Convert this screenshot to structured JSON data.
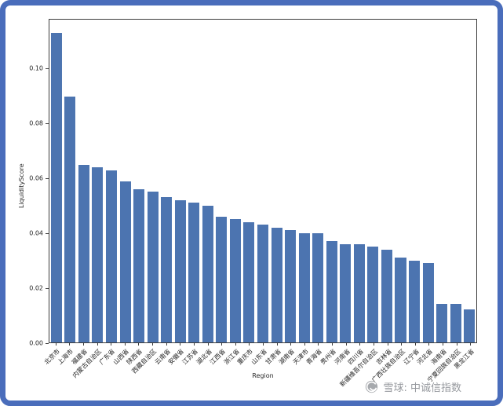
{
  "frame": {
    "border_color": "#4a6dbb",
    "background": "#ffffff"
  },
  "watermark": {
    "text": "雪球: 中诚信指数",
    "color": "#96999e"
  },
  "chart_data": {
    "type": "bar",
    "title": "",
    "xlabel": "Region",
    "ylabel": "LiquidityScore",
    "bar_color": "#4c74b0",
    "grid": false,
    "legend": null,
    "ylim": [
      0,
      0.118
    ],
    "yticks": [
      "0.00",
      "0.02",
      "0.04",
      "0.06",
      "0.08",
      "0.10"
    ],
    "categories": [
      "北京市",
      "上海市",
      "福建省",
      "内蒙古自治区",
      "广东省",
      "山西省",
      "陕西省",
      "西藏自治区",
      "云南省",
      "安徽省",
      "江苏省",
      "湖北省",
      "江西省",
      "浙江省",
      "重庆市",
      "山东省",
      "甘肃省",
      "湖南省",
      "天津市",
      "青海省",
      "贵州省",
      "河南省",
      "四川省",
      "新疆维吾尔自治区",
      "吉林省",
      "广西壮族自治区",
      "辽宁省",
      "河北省",
      "海南省",
      "宁夏回族自治区",
      "黑龙江省"
    ],
    "values": [
      0.113,
      0.09,
      0.065,
      0.064,
      0.063,
      0.059,
      0.056,
      0.055,
      0.053,
      0.052,
      0.051,
      0.05,
      0.046,
      0.045,
      0.044,
      0.043,
      0.042,
      0.041,
      0.04,
      0.04,
      0.037,
      0.036,
      0.036,
      0.035,
      0.034,
      0.031,
      0.03,
      0.029,
      0.014,
      0.014,
      0.012
    ]
  }
}
